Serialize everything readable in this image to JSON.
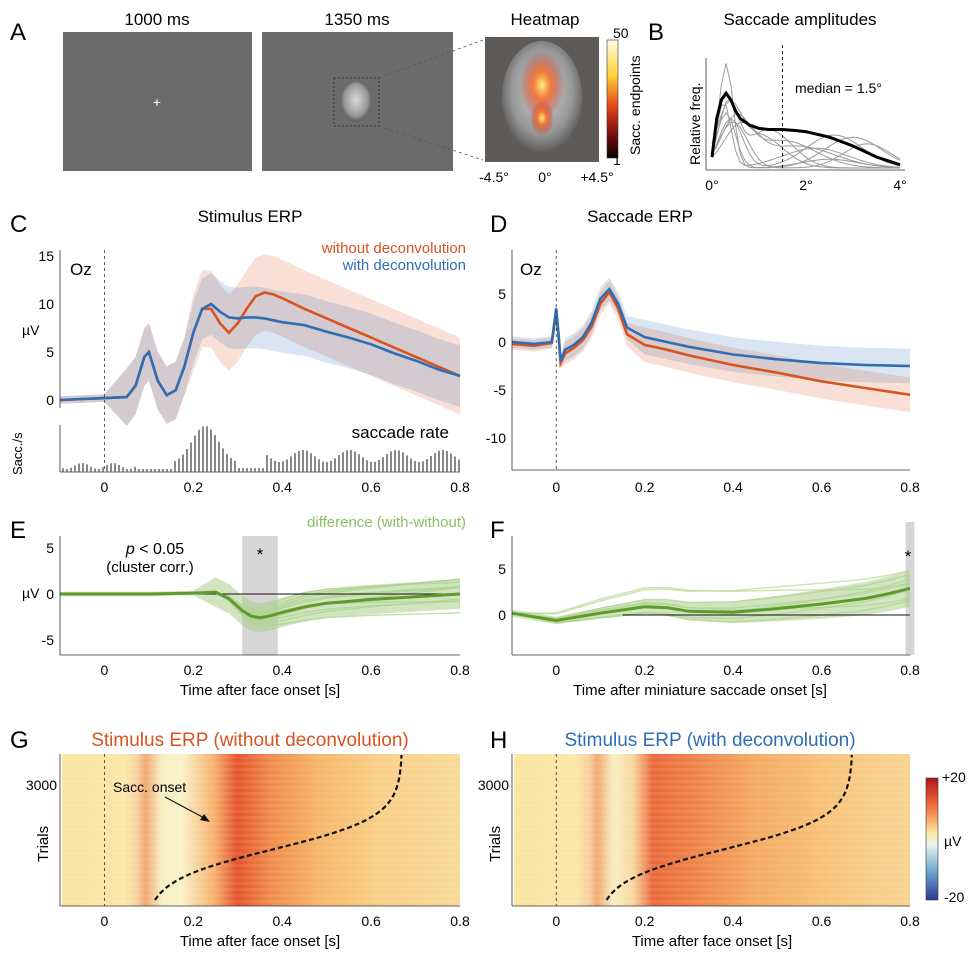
{
  "colors": {
    "without": "#d9531e",
    "with": "#2f6db5",
    "difference": "#6aa33a",
    "difference_light": "#b9d99a",
    "gray_bg": "#6b6b6b",
    "sig_patch": "#d6d6d6"
  },
  "panel_labels": {
    "A": "A",
    "B": "B",
    "C": "C",
    "D": "D",
    "E": "E",
    "F": "F",
    "G": "G",
    "H": "H"
  },
  "panel_a": {
    "frame1_title": "1000 ms",
    "frame2_title": "1350 ms",
    "heatmap_title": "Heatmap",
    "fixation_cross": "+",
    "heatmap_ticks": [
      "-4.5°",
      "0°",
      "+4.5°"
    ],
    "colorbar_ticks": [
      "50",
      "1"
    ],
    "colorbar_label": "Sacc. endpoints"
  },
  "chart_data": [
    {
      "id": "B",
      "type": "line",
      "title": "Saccade amplitudes",
      "ylabel": "Relative freq.",
      "xlabel": "",
      "x_ticks": [
        "0°",
        "2°",
        "4°"
      ],
      "xlim": [
        0,
        4
      ],
      "annotation": "median = 1.5°",
      "median": 1.5,
      "mean_curve": {
        "x": [
          0,
          0.1,
          0.2,
          0.3,
          0.4,
          0.5,
          0.6,
          0.8,
          1.0,
          1.2,
          1.5,
          1.8,
          2.0,
          2.5,
          3.0,
          3.5,
          4.0
        ],
        "y": [
          0.1,
          0.45,
          0.62,
          0.68,
          0.62,
          0.52,
          0.45,
          0.39,
          0.36,
          0.35,
          0.35,
          0.34,
          0.33,
          0.28,
          0.2,
          0.1,
          0.03
        ]
      }
    },
    {
      "id": "C",
      "type": "line",
      "title": "Stimulus ERP",
      "channel": "Oz",
      "ylabel": "µV",
      "y_ticks": [
        "0",
        "5",
        "10",
        "15"
      ],
      "ylim": [
        -1,
        15
      ],
      "xlim": [
        -0.1,
        0.8
      ],
      "series": [
        {
          "name": "without deconvolution",
          "x": [
            -0.1,
            -0.05,
            0,
            0.05,
            0.07,
            0.09,
            0.1,
            0.12,
            0.14,
            0.16,
            0.18,
            0.2,
            0.22,
            0.24,
            0.26,
            0.28,
            0.3,
            0.32,
            0.34,
            0.36,
            0.38,
            0.4,
            0.45,
            0.5,
            0.55,
            0.6,
            0.65,
            0.7,
            0.75,
            0.8
          ],
          "y": [
            0,
            0.1,
            0.2,
            0.3,
            1.5,
            4.5,
            5.0,
            2.0,
            0.5,
            1.0,
            3.5,
            7.0,
            9.5,
            9.5,
            8.0,
            7.0,
            8.0,
            9.5,
            10.8,
            11.2,
            11.0,
            10.6,
            9.5,
            8.5,
            7.5,
            6.5,
            5.5,
            4.5,
            3.5,
            2.5
          ]
        },
        {
          "name": "with deconvolution",
          "x": [
            -0.1,
            -0.05,
            0,
            0.05,
            0.07,
            0.09,
            0.1,
            0.12,
            0.14,
            0.16,
            0.18,
            0.2,
            0.22,
            0.24,
            0.26,
            0.28,
            0.3,
            0.32,
            0.34,
            0.36,
            0.38,
            0.4,
            0.45,
            0.5,
            0.55,
            0.6,
            0.65,
            0.7,
            0.75,
            0.8
          ],
          "y": [
            0,
            0.1,
            0.2,
            0.3,
            1.5,
            4.5,
            5.0,
            2.0,
            0.5,
            1.0,
            3.5,
            7.0,
            9.5,
            10.0,
            9.2,
            8.6,
            8.5,
            8.6,
            8.6,
            8.5,
            8.3,
            8.1,
            7.8,
            7.1,
            6.5,
            5.8,
            4.9,
            4.1,
            3.2,
            2.5
          ]
        }
      ],
      "saccade_rate_label": "saccade rate",
      "saccade_rate_ylabel": "Sacc./s"
    },
    {
      "id": "D",
      "type": "line",
      "title": "Saccade ERP",
      "channel": "Oz",
      "y_ticks": [
        "5",
        "0",
        "-5",
        "-10"
      ],
      "ylim": [
        -10,
        7
      ],
      "x_ticks": [
        "0",
        "0.2",
        "0.4",
        "0.6",
        "0.8"
      ],
      "xlim": [
        -0.1,
        0.8
      ],
      "series": [
        {
          "name": "with deconvolution",
          "x": [
            -0.1,
            -0.05,
            -0.01,
            0,
            0.005,
            0.01,
            0.02,
            0.04,
            0.06,
            0.08,
            0.1,
            0.12,
            0.14,
            0.16,
            0.2,
            0.25,
            0.3,
            0.4,
            0.5,
            0.6,
            0.7,
            0.8
          ],
          "y": [
            0,
            -0.2,
            0,
            3.5,
            1.0,
            -2.0,
            -0.8,
            -0.3,
            0.5,
            2.0,
            4.5,
            5.5,
            4.0,
            1.5,
            0.5,
            0,
            -0.5,
            -1.3,
            -1.8,
            -2.2,
            -2.4,
            -2.5
          ]
        },
        {
          "name": "without deconvolution",
          "x": [
            -0.1,
            -0.05,
            -0.01,
            0,
            0.005,
            0.01,
            0.02,
            0.04,
            0.06,
            0.08,
            0.1,
            0.12,
            0.14,
            0.16,
            0.2,
            0.25,
            0.3,
            0.4,
            0.5,
            0.6,
            0.7,
            0.8
          ],
          "y": [
            -0.2,
            -0.4,
            -0.1,
            3.0,
            0.8,
            -2.2,
            -1.2,
            -0.6,
            0.2,
            1.6,
            4.0,
            5.2,
            3.5,
            0.8,
            -0.3,
            -0.8,
            -1.4,
            -2.4,
            -3.2,
            -4.1,
            -4.8,
            -5.5
          ]
        }
      ]
    },
    {
      "id": "E",
      "type": "line",
      "xlabel": "Time after face onset [s]",
      "ylabel": "µV",
      "y_ticks": [
        "5",
        "0",
        "-5"
      ],
      "ylim": [
        -6,
        6
      ],
      "x_ticks": [
        "0",
        "0.2",
        "0.4",
        "0.6",
        "0.8"
      ],
      "xlim": [
        -0.1,
        0.8
      ],
      "legend_text": "difference (with-without)",
      "significance_text": "p < 0.05",
      "significance_sub": "(cluster corr.)",
      "sig_window": [
        0.31,
        0.39
      ],
      "sig_marker": "*",
      "series": [
        {
          "name": "difference (with-without)",
          "x": [
            -0.1,
            0,
            0.1,
            0.2,
            0.25,
            0.28,
            0.31,
            0.33,
            0.35,
            0.37,
            0.4,
            0.45,
            0.5,
            0.6,
            0.7,
            0.8
          ],
          "y": [
            0,
            0,
            0,
            0.1,
            0.2,
            -0.5,
            -1.8,
            -2.4,
            -2.6,
            -2.4,
            -2.0,
            -1.4,
            -1.0,
            -0.6,
            -0.3,
            0
          ]
        }
      ]
    },
    {
      "id": "F",
      "type": "line",
      "xlabel": "Time after miniature saccade onset [s]",
      "y_ticks": [
        "5",
        "0"
      ],
      "ylim": [
        -3,
        8
      ],
      "x_ticks": [
        "0",
        "0.2",
        "0.4",
        "0.6",
        "0.8"
      ],
      "xlim": [
        -0.1,
        0.8
      ],
      "sig_window": [
        0.79,
        0.81
      ],
      "sig_marker": "*",
      "series": [
        {
          "x": [
            -0.1,
            0,
            0.1,
            0.2,
            0.25,
            0.3,
            0.4,
            0.5,
            0.6,
            0.7,
            0.75,
            0.8
          ],
          "y": [
            0.2,
            -0.6,
            0.2,
            0.9,
            0.8,
            0.4,
            0.3,
            0.7,
            1.2,
            1.8,
            2.3,
            2.9
          ]
        }
      ]
    },
    {
      "id": "G",
      "type": "heatmap",
      "title": "Stimulus ERP (without deconvolution)",
      "ylabel": "Trials",
      "y_ticks": [
        "3000"
      ],
      "xlabel": "Time after face onset [s]",
      "x_ticks": [
        "0",
        "0.2",
        "0.4",
        "0.6",
        "0.8"
      ],
      "xlim": [
        -0.1,
        0.8
      ],
      "annotation": "Sacc. onset"
    },
    {
      "id": "H",
      "type": "heatmap",
      "title": "Stimulus ERP (with deconvolution)",
      "ylabel": "Trials",
      "y_ticks": [
        "3000"
      ],
      "xlabel": "Time after face onset [s]",
      "x_ticks": [
        "0",
        "0.2",
        "0.4",
        "0.6",
        "0.8"
      ],
      "xlim": [
        -0.1,
        0.8
      ],
      "colorbar_ticks": [
        "+20",
        "µV",
        "-20"
      ]
    }
  ]
}
